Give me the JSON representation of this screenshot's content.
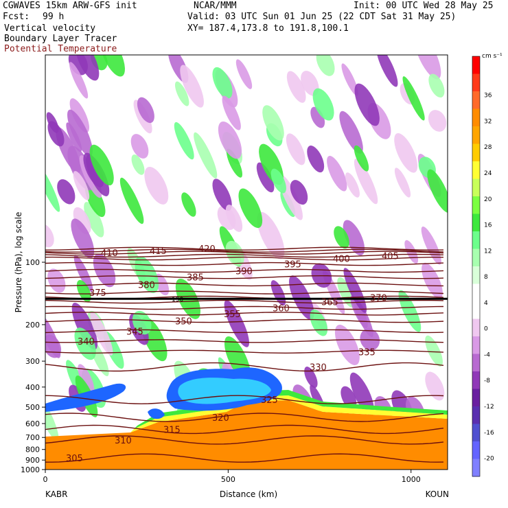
{
  "header": {
    "line1_left": "CGWAVES 15km ARW-GFS init",
    "line1_mid": "NCAR/MMM",
    "line1_right": "Init: 00 UTC Wed 28 May 25",
    "fcst_label": "Fcst:",
    "fcst_value": "99 h",
    "valid": "Valid: 03 UTC Sun 01 Jun 25 (22 CDT Sat 31 May 25)",
    "field1": "Vertical velocity",
    "field2": "Boundary Layer Tracer",
    "xy": "XY= 187.4,173.8 to 191.8,100.1",
    "field3": "Potential Temperature"
  },
  "chart_data": {
    "type": "heatmap",
    "title": "",
    "xlabel": "Distance (km)",
    "ylabel": "Pressure (hPa), log scale",
    "xlim": [
      0,
      1100
    ],
    "ylim": [
      1000,
      10
    ],
    "x_ticks": [
      0,
      500,
      1000
    ],
    "y_ticks": [
      100,
      200,
      300,
      400,
      500,
      600,
      700,
      800,
      900,
      1000
    ],
    "endpoints": {
      "left": "KABR",
      "right": "KOUN"
    },
    "colorbar": {
      "unit": "cm s⁻¹",
      "labels": [
        36,
        32,
        28,
        24,
        20,
        16,
        12,
        8,
        4,
        0,
        -4,
        -8,
        -12,
        -16,
        -20
      ],
      "colors": [
        "#ff0000",
        "#ff3a1a",
        "#ff6a2a",
        "#ff8c00",
        "#ffa500",
        "#ffcc00",
        "#ffff33",
        "#c8ff5a",
        "#7bff40",
        "#3de83d",
        "#6cff8c",
        "#a8ffb0",
        "#d9ffd9",
        "#ffffff",
        "#ffffff",
        "#f0c8f0",
        "#d99ae6",
        "#b86ad1",
        "#9038b8",
        "#6a1fa0",
        "#5a2fb0",
        "#5050d0",
        "#6464ff",
        "#8080ff"
      ]
    },
    "theta_contours": [
      {
        "value": 305,
        "p": 880
      },
      {
        "value": 310,
        "p": 720
      },
      {
        "value": 315,
        "p": 640
      },
      {
        "value": 320,
        "p": 560
      },
      {
        "value": 325,
        "p": 460
      },
      {
        "value": 330,
        "p": 320
      },
      {
        "value": 335,
        "p": 270
      },
      {
        "value": 340,
        "p": 240
      },
      {
        "value": 345,
        "p": 215
      },
      {
        "value": 350,
        "p": 192
      },
      {
        "value": 355,
        "p": 177
      },
      {
        "value": 360,
        "p": 166
      },
      {
        "value": 365,
        "p": 155
      },
      {
        "value": 370,
        "p": 148
      },
      {
        "value": 375,
        "p": 140
      },
      {
        "value": 380,
        "p": 128
      },
      {
        "value": 385,
        "p": 118
      },
      {
        "value": 390,
        "p": 110
      },
      {
        "value": 395,
        "p": 102
      },
      {
        "value": 400,
        "p": 96
      },
      {
        "value": 405,
        "p": 93
      },
      {
        "value": 410,
        "p": 90
      },
      {
        "value": 415,
        "p": 88
      },
      {
        "value": 420,
        "p": 86
      }
    ],
    "bold_contour": {
      "value": 150,
      "p": 150
    }
  }
}
